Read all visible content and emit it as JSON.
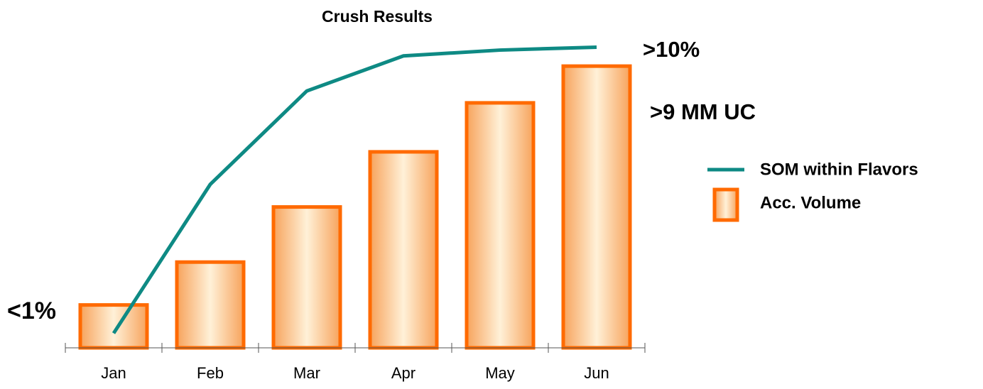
{
  "chart_data": {
    "type": "bar_line",
    "title": "Crush Results",
    "categories": [
      "Jan",
      "Feb",
      "Mar",
      "Apr",
      "May",
      "Jun"
    ],
    "series": [
      {
        "name": "Acc. Volume",
        "type": "bar",
        "color": "#ff6a00",
        "values": [
          1.4,
          2.8,
          4.6,
          6.4,
          8.0,
          9.2
        ]
      },
      {
        "name": "SOM within Flavors",
        "type": "line",
        "axis": "y2",
        "color": "#0e8a84",
        "values": [
          0.5,
          5.6,
          8.8,
          10.0,
          10.2,
          10.3
        ]
      }
    ],
    "ylim": [
      0,
      10.2
    ],
    "y2lim": [
      0,
      10.7
    ],
    "annotations": [
      "<1%",
      ">10%",
      ">9 MM UC"
    ]
  }
}
